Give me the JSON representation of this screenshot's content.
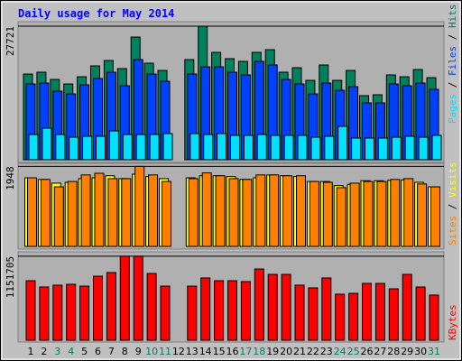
{
  "title": "Daily usage for May 2014",
  "chart_data": [
    {
      "type": "bar",
      "ylim": [
        0,
        28100
      ],
      "yticks": [
        27721
      ],
      "series": [
        {
          "name": "Hits",
          "color": "#00805c",
          "values": [
            17790,
            18170,
            16670,
            15730,
            17230,
            19480,
            20600,
            18920,
            25470,
            20040,
            18540,
            null,
            20790,
            27721,
            22290,
            20980,
            20420,
            22290,
            22850,
            18170,
            19100,
            16480,
            19670,
            16480,
            18540,
            13300,
            13490,
            17610,
            17230,
            18730,
            17040
          ]
        },
        {
          "name": "Files",
          "color": "#0040ff",
          "values": [
            15730,
            15920,
            14230,
            13670,
            15550,
            16860,
            18170,
            15360,
            20790,
            17790,
            16290,
            null,
            17790,
            19290,
            19290,
            18170,
            17610,
            20420,
            19670,
            16670,
            15730,
            13670,
            15920,
            14420,
            15170,
            11800,
            11800,
            15730,
            15360,
            15920,
            14610
          ]
        },
        {
          "name": "Pages",
          "color": "#00e0ff",
          "values": [
            5240,
            6560,
            5240,
            4680,
            4870,
            4870,
            5990,
            5240,
            5240,
            5240,
            5430,
            null,
            5430,
            5240,
            5430,
            5060,
            5060,
            5240,
            5060,
            5060,
            5060,
            4680,
            4870,
            6930,
            4500,
            4500,
            4500,
            4680,
            4870,
            4680,
            5060
          ]
        }
      ]
    },
    {
      "type": "bar",
      "ylim": [
        0,
        2000
      ],
      "yticks": [
        1948
      ],
      "series": [
        {
          "name": "Visits",
          "color": "#ffff00",
          "values": [
            1670,
            1630,
            1540,
            1560,
            1650,
            1670,
            1720,
            1650,
            1760,
            1700,
            1650,
            null,
            1670,
            1720,
            1720,
            1700,
            1630,
            1670,
            1740,
            1720,
            1700,
            1580,
            1580,
            1480,
            1510,
            1600,
            1600,
            1610,
            1620,
            1560,
            1450
          ]
        },
        {
          "name": "Sites",
          "color": "#ff8000",
          "values": [
            1670,
            1630,
            1450,
            1580,
            1740,
            1780,
            1650,
            1650,
            1948,
            1740,
            1580,
            null,
            1650,
            1790,
            1720,
            1650,
            1630,
            1740,
            1740,
            1720,
            1720,
            1580,
            1560,
            1430,
            1540,
            1580,
            1580,
            1630,
            1650,
            1520,
            1450
          ]
        }
      ]
    },
    {
      "type": "bar",
      "ylim": [
        0,
        1200000
      ],
      "yticks": [
        1151705
      ],
      "categories": [
        "1",
        "2",
        "3",
        "4",
        "5",
        "6",
        "7",
        "8",
        "9",
        "10",
        "11",
        "12",
        "13",
        "14",
        "15",
        "16",
        "17",
        "18",
        "19",
        "20",
        "21",
        "22",
        "23",
        "24",
        "25",
        "26",
        "27",
        "28",
        "29",
        "30",
        "31"
      ],
      "category_colors": [
        "#000000",
        "#000000",
        "#00805c",
        "#00805c",
        "#000000",
        "#000000",
        "#000000",
        "#000000",
        "#000000",
        "#00805c",
        "#00805c",
        "#000000",
        "#000000",
        "#000000",
        "#000000",
        "#000000",
        "#00805c",
        "#00805c",
        "#000000",
        "#000000",
        "#000000",
        "#000000",
        "#000000",
        "#00805c",
        "#00805c",
        "#000000",
        "#000000",
        "#000000",
        "#000000",
        "#000000",
        "#00805c"
      ],
      "series": [
        {
          "name": "KBytes",
          "color": "#ff0000",
          "values": [
            816000,
            730000,
            755000,
            767000,
            742000,
            878000,
            928000,
            1151705,
            1151705,
            915000,
            742000,
            null,
            742000,
            854000,
            816000,
            816000,
            804000,
            977000,
            903000,
            903000,
            755000,
            718000,
            854000,
            631000,
            643000,
            779000,
            779000,
            705000,
            903000,
            730000,
            619000
          ]
        }
      ]
    }
  ]
}
